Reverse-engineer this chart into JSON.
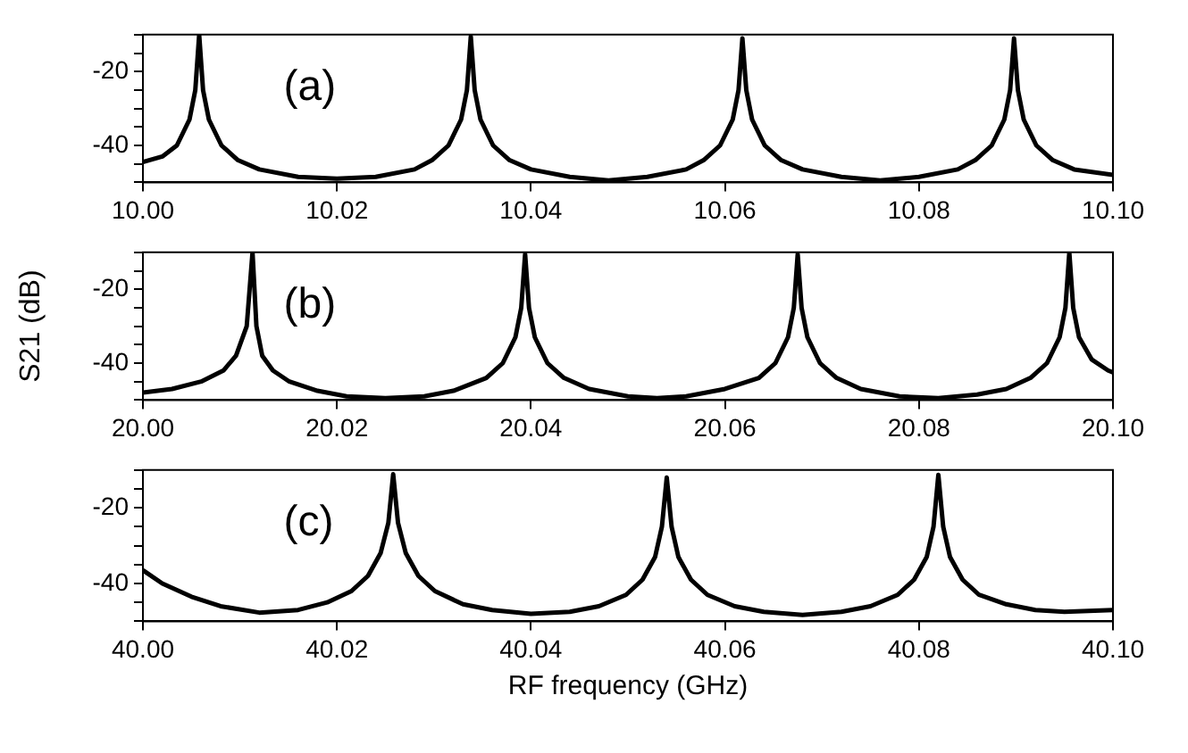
{
  "chart_data": [
    {
      "type": "line",
      "annotations": [
        "(a)"
      ],
      "xlim": [
        10.0,
        10.1
      ],
      "xticks": [
        {
          "value": 10.0,
          "label": "10.00"
        },
        {
          "value": 10.02,
          "label": "10.02"
        },
        {
          "value": 10.04,
          "label": "10.04"
        },
        {
          "value": 10.06,
          "label": "10.06"
        },
        {
          "value": 10.08,
          "label": "10.08"
        },
        {
          "value": 10.1,
          "label": "10.10"
        }
      ],
      "ylim": [
        -50,
        -10
      ],
      "yticks": [
        {
          "value": -50,
          "label": null
        },
        {
          "value": -45,
          "label": null
        },
        {
          "value": -40,
          "label": "-40"
        },
        {
          "value": -35,
          "label": null
        },
        {
          "value": -30,
          "label": null
        },
        {
          "value": -25,
          "label": null
        },
        {
          "value": -20,
          "label": "-20"
        },
        {
          "value": -15,
          "label": null
        },
        {
          "value": -10,
          "label": null
        }
      ],
      "series": [
        {
          "color": "#000000",
          "x": [
            10.0,
            10.002,
            10.0035,
            10.0048,
            10.0054,
            10.0058,
            10.0062,
            10.0068,
            10.0081,
            10.0098,
            10.012,
            10.016,
            10.02,
            10.024,
            10.028,
            10.0298,
            10.0315,
            10.0328,
            10.0334,
            10.0338,
            10.0342,
            10.0348,
            10.0361,
            10.0378,
            10.04,
            10.044,
            10.048,
            10.052,
            10.056,
            10.0578,
            10.0595,
            10.0608,
            10.0614,
            10.0618,
            10.0622,
            10.0628,
            10.0641,
            10.0658,
            10.068,
            10.072,
            10.076,
            10.08,
            10.084,
            10.0858,
            10.0875,
            10.0888,
            10.0894,
            10.0898,
            10.0902,
            10.0908,
            10.0921,
            10.0938,
            10.096,
            10.1
          ],
          "values": [
            -44.5,
            -43,
            -40,
            -33,
            -25,
            -10,
            -25,
            -33,
            -40,
            -44,
            -46.5,
            -48.5,
            -49,
            -48.5,
            -46.5,
            -44,
            -40,
            -33,
            -25,
            -10.5,
            -25,
            -33,
            -40,
            -44,
            -46.5,
            -48.5,
            -49.5,
            -48.5,
            -46.5,
            -44,
            -40,
            -33,
            -25,
            -11,
            -25,
            -33,
            -40,
            -44,
            -46.5,
            -48.5,
            -49.5,
            -48.5,
            -46.5,
            -44,
            -40,
            -33,
            -25,
            -11,
            -25,
            -33,
            -40,
            -44,
            -46.5,
            -48
          ]
        }
      ]
    },
    {
      "type": "line",
      "annotations": [
        "(b)"
      ],
      "ylabel": "S21 (dB)",
      "xlim": [
        20.0,
        20.1
      ],
      "xticks": [
        {
          "value": 20.0,
          "label": "20.00"
        },
        {
          "value": 20.02,
          "label": "20.02"
        },
        {
          "value": 20.04,
          "label": "20.04"
        },
        {
          "value": 20.06,
          "label": "20.06"
        },
        {
          "value": 20.08,
          "label": "20.08"
        },
        {
          "value": 20.1,
          "label": "20.10"
        }
      ],
      "ylim": [
        -50,
        -10
      ],
      "yticks": [
        {
          "value": -50,
          "label": null
        },
        {
          "value": -45,
          "label": null
        },
        {
          "value": -40,
          "label": "-40"
        },
        {
          "value": -35,
          "label": null
        },
        {
          "value": -30,
          "label": null
        },
        {
          "value": -25,
          "label": null
        },
        {
          "value": -20,
          "label": "-20"
        },
        {
          "value": -15,
          "label": null
        },
        {
          "value": -10,
          "label": null
        }
      ],
      "series": [
        {
          "color": "#000000",
          "x": [
            20.0,
            20.003,
            20.006,
            20.0083,
            20.0096,
            20.0107,
            20.0113,
            20.0117,
            20.0123,
            20.0134,
            20.0151,
            20.018,
            20.021,
            20.025,
            20.029,
            20.032,
            20.0354,
            20.0371,
            20.0384,
            20.039,
            20.0394,
            20.0398,
            20.0404,
            20.0417,
            20.0434,
            20.046,
            20.05,
            20.053,
            20.056,
            20.06,
            20.0635,
            20.0652,
            20.0665,
            20.0671,
            20.0675,
            20.0679,
            20.0685,
            20.0698,
            20.0715,
            20.074,
            20.078,
            20.082,
            20.086,
            20.089,
            20.0915,
            20.0932,
            20.0945,
            20.0951,
            20.0955,
            20.0959,
            20.0965,
            20.0978,
            20.0995,
            20.1
          ],
          "values": [
            -48,
            -47,
            -45,
            -42,
            -38,
            -30,
            -10,
            -30,
            -38,
            -42,
            -45,
            -47.5,
            -49,
            -49.5,
            -49,
            -47.5,
            -44,
            -40,
            -33,
            -25,
            -10.5,
            -25,
            -33,
            -40,
            -44,
            -47,
            -49,
            -49.5,
            -49,
            -47,
            -44,
            -40,
            -33,
            -25,
            -10.5,
            -25,
            -33,
            -40,
            -44,
            -47,
            -49,
            -49.5,
            -48.5,
            -47,
            -44,
            -40,
            -33,
            -25,
            -10,
            -25,
            -33,
            -39,
            -42,
            -42.5
          ]
        }
      ]
    },
    {
      "type": "line",
      "annotations": [
        "(c)"
      ],
      "xlabel": "RF frequency (GHz)",
      "xlim": [
        40.0,
        40.1
      ],
      "xticks": [
        {
          "value": 40.0,
          "label": "40.00"
        },
        {
          "value": 40.02,
          "label": "40.02"
        },
        {
          "value": 40.04,
          "label": "40.04"
        },
        {
          "value": 40.06,
          "label": "40.06"
        },
        {
          "value": 40.08,
          "label": "40.08"
        },
        {
          "value": 40.1,
          "label": "40.10"
        }
      ],
      "ylim": [
        -50,
        -10
      ],
      "yticks": [
        {
          "value": -50,
          "label": null
        },
        {
          "value": -45,
          "label": null
        },
        {
          "value": -40,
          "label": "-40"
        },
        {
          "value": -35,
          "label": null
        },
        {
          "value": -30,
          "label": null
        },
        {
          "value": -25,
          "label": null
        },
        {
          "value": -20,
          "label": "-20"
        },
        {
          "value": -15,
          "label": null
        },
        {
          "value": -10,
          "label": null
        }
      ],
      "series": [
        {
          "color": "#000000",
          "x": [
            40.0,
            40.002,
            40.005,
            40.008,
            40.012,
            40.016,
            40.019,
            40.0215,
            40.0232,
            40.0245,
            40.0253,
            40.0258,
            40.0263,
            40.0271,
            40.0284,
            40.0301,
            40.033,
            40.036,
            40.04,
            40.044,
            40.047,
            40.0498,
            40.0515,
            40.0528,
            40.0535,
            40.054,
            40.0545,
            40.0552,
            40.0565,
            40.0582,
            40.061,
            40.064,
            40.068,
            40.072,
            40.075,
            40.0778,
            40.0795,
            40.0808,
            40.0815,
            40.082,
            40.0825,
            40.0832,
            40.0845,
            40.0862,
            40.089,
            40.092,
            40.095,
            40.1
          ],
          "values": [
            -36.5,
            -40,
            -43.5,
            -46,
            -47.7,
            -47,
            -45,
            -42,
            -38,
            -32,
            -24,
            -11.1,
            -24,
            -32,
            -38,
            -42,
            -45.5,
            -47,
            -48,
            -47.5,
            -46,
            -43,
            -39,
            -33,
            -25,
            -12,
            -25,
            -33,
            -39,
            -43,
            -46,
            -47.5,
            -48.3,
            -47.5,
            -46,
            -43,
            -39,
            -33,
            -25,
            -11.3,
            -25,
            -33,
            -39,
            -43,
            -45.5,
            -47,
            -47.5,
            -47
          ]
        }
      ]
    }
  ]
}
